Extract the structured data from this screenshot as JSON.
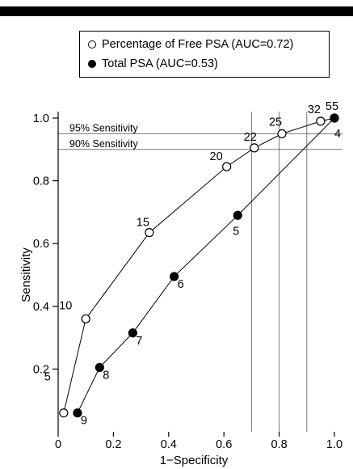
{
  "chart_data": {
    "type": "line",
    "xlabel": "1−Specificity",
    "ylabel": "Sensitivity",
    "xlim": [
      0,
      1.0
    ],
    "ylim": [
      0,
      1.0
    ],
    "x_ticks": [
      "0",
      "0.2",
      "0.4",
      "0.6",
      "0.8",
      "1.0"
    ],
    "y_ticks": [
      "0.2",
      "0.4",
      "0.6",
      "0.8",
      "1.0"
    ],
    "legend_position": "top",
    "series": [
      {
        "name": "Percentage of Free PSA (AUC=0.72)",
        "marker": "open-circle",
        "points": [
          {
            "x": 0.02,
            "y": 0.06,
            "label": "5"
          },
          {
            "x": 0.1,
            "y": 0.36,
            "label": "10"
          },
          {
            "x": 0.33,
            "y": 0.635,
            "label": "15"
          },
          {
            "x": 0.61,
            "y": 0.845,
            "label": "20"
          },
          {
            "x": 0.71,
            "y": 0.905,
            "label": "22"
          },
          {
            "x": 0.81,
            "y": 0.95,
            "label": "25"
          },
          {
            "x": 0.95,
            "y": 0.99,
            "label": "32"
          },
          {
            "x": 1.0,
            "y": 1.0,
            "label": "55"
          }
        ]
      },
      {
        "name": "Total PSA (AUC=0.53)",
        "marker": "filled-circle",
        "points": [
          {
            "x": 0.07,
            "y": 0.06,
            "label": "9"
          },
          {
            "x": 0.15,
            "y": 0.205,
            "label": "8"
          },
          {
            "x": 0.27,
            "y": 0.315,
            "label": "7"
          },
          {
            "x": 0.42,
            "y": 0.495,
            "label": "6"
          },
          {
            "x": 0.65,
            "y": 0.69,
            "label": "5"
          },
          {
            "x": 1.0,
            "y": 1.0,
            "label": "4"
          }
        ]
      }
    ],
    "reference_lines": [
      {
        "axis": "y",
        "value": 0.95,
        "label": "95% Sensitivity"
      },
      {
        "axis": "y",
        "value": 0.9,
        "label": "90% Sensitivity"
      },
      {
        "axis": "x",
        "value": 0.7,
        "label": ""
      },
      {
        "axis": "x",
        "value": 0.8,
        "label": ""
      },
      {
        "axis": "x",
        "value": 0.9,
        "label": ""
      }
    ]
  }
}
